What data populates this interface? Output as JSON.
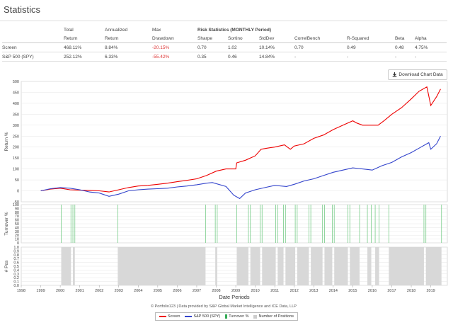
{
  "page": {
    "title": "Statistics"
  },
  "stats": {
    "headers": {
      "total": [
        "Total",
        "Return"
      ],
      "ann": [
        "Annualized",
        "Return"
      ],
      "max": [
        "Max",
        "Drawdown"
      ],
      "risk_title": "Risk Statistics (MONTHLY Period)",
      "cols": [
        "Sharpe",
        "Sortino",
        "StdDev",
        "CorrelBench",
        "R-Squared",
        "Beta",
        "Alpha"
      ]
    },
    "rows": [
      {
        "name": "Screen",
        "total": "468.11%",
        "ann": "8.84%",
        "maxdd": "-20.15%",
        "sharpe": "0.70",
        "sortino": "1.02",
        "stddev": "10.14%",
        "correl": "0.70",
        "rsq": "0.49",
        "beta": "0.48",
        "alpha": "4.75%"
      },
      {
        "name": "S&P 500 (SPY)",
        "total": "252.12%",
        "ann": "6.33%",
        "maxdd": "-55.42%",
        "sharpe": "0.35",
        "sortino": "0.46",
        "stddev": "14.84%",
        "correl": "-",
        "rsq": "-",
        "beta": "-",
        "alpha": "-"
      }
    ]
  },
  "download": {
    "label": "Download Chart Data",
    "icon": "download-icon"
  },
  "chart_data": [
    {
      "type": "line",
      "ylabel": "Return %",
      "ylim": [
        -50,
        500
      ],
      "yticks": [
        "500",
        "450",
        "400",
        "350",
        "300",
        "250",
        "200",
        "150",
        "100",
        "50",
        "0",
        "-50"
      ],
      "series": [
        {
          "name": "Screen",
          "color": "#ee0000",
          "x": [
            1999.0,
            1999.5,
            2000.0,
            2000.5,
            2001.0,
            2001.5,
            2002.0,
            2002.5,
            2003.0,
            2003.5,
            2004.0,
            2004.5,
            2005.0,
            2005.5,
            2006.0,
            2006.5,
            2007.0,
            2007.5,
            2008.0,
            2008.5,
            2009.0,
            2009.05,
            2009.5,
            2010.0,
            2010.3,
            2010.6,
            2011.0,
            2011.5,
            2011.8,
            2012.0,
            2012.5,
            2013.0,
            2013.5,
            2014.0,
            2014.5,
            2015.0,
            2015.2,
            2015.5,
            2016.0,
            2016.3,
            2016.6,
            2017.0,
            2017.5,
            2018.0,
            2018.4,
            2018.8,
            2019.0,
            2019.3,
            2019.5
          ],
          "y": [
            0,
            8,
            12,
            5,
            3,
            2,
            0,
            -5,
            5,
            15,
            22,
            25,
            30,
            35,
            42,
            48,
            55,
            70,
            90,
            100,
            100,
            128,
            140,
            160,
            190,
            195,
            200,
            210,
            190,
            205,
            215,
            240,
            255,
            280,
            300,
            320,
            310,
            300,
            300,
            300,
            320,
            350,
            380,
            420,
            455,
            475,
            390,
            430,
            465
          ]
        },
        {
          "name": "S&P 500 (SPY)",
          "color": "#3344cc",
          "x": [
            1999.0,
            1999.5,
            2000.0,
            2000.5,
            2001.0,
            2001.5,
            2002.0,
            2002.5,
            2003.0,
            2003.5,
            2004.0,
            2004.5,
            2005.0,
            2005.5,
            2006.0,
            2006.5,
            2007.0,
            2007.5,
            2007.8,
            2008.5,
            2008.9,
            2009.2,
            2009.5,
            2010.0,
            2010.5,
            2011.0,
            2011.6,
            2012.0,
            2012.5,
            2013.0,
            2013.5,
            2014.0,
            2014.5,
            2015.0,
            2015.5,
            2016.0,
            2016.5,
            2017.0,
            2017.5,
            2018.0,
            2018.5,
            2018.9,
            2019.0,
            2019.3,
            2019.5
          ],
          "y": [
            0,
            10,
            15,
            12,
            5,
            -5,
            -10,
            -25,
            -15,
            0,
            5,
            8,
            10,
            12,
            18,
            22,
            28,
            35,
            38,
            20,
            -20,
            -35,
            -10,
            5,
            15,
            25,
            20,
            30,
            45,
            55,
            70,
            85,
            95,
            105,
            100,
            95,
            115,
            130,
            155,
            175,
            200,
            220,
            190,
            215,
            250
          ]
        }
      ]
    },
    {
      "type": "bar",
      "ylabel": "Turnover %",
      "ylim": [
        0,
        100
      ],
      "yticks": [
        "100",
        "90",
        "80",
        "70",
        "60",
        "50",
        "40",
        "30",
        "20",
        "10",
        "0"
      ],
      "series": [
        {
          "name": "Turnover %",
          "color": "#77cc88"
        }
      ]
    },
    {
      "type": "area",
      "ylabel": "# Pos",
      "ylim": [
        0,
        1
      ],
      "yticks": [
        "1.0",
        "0.9",
        "0.8",
        "0.7",
        "0.6",
        "0.5",
        "0.4",
        "0.3",
        "0.2",
        "0.1",
        "0.0"
      ],
      "xlabel": "Date Periods",
      "xticks": [
        "1998",
        "1999",
        "2000",
        "2001",
        "2002",
        "2003",
        "2004",
        "2005",
        "2006",
        "2007",
        "2008",
        "2009",
        "2010",
        "2011",
        "2012",
        "2013",
        "2014",
        "2015",
        "2016",
        "2017",
        "2018",
        "2019"
      ],
      "series": [
        {
          "name": "Number of Positions",
          "color": "#d8d8d8",
          "intervals": [
            [
              2000.05,
              2000.55
            ],
            [
              2000.65,
              2000.75
            ],
            [
              2002.95,
              2007.45
            ],
            [
              2007.95,
              2008.05
            ],
            [
              2009.05,
              2009.65
            ],
            [
              2009.75,
              2010.25
            ],
            [
              2010.35,
              2011.05
            ],
            [
              2011.15,
              2011.45
            ],
            [
              2011.55,
              2012.05
            ],
            [
              2012.15,
              2012.75
            ],
            [
              2012.85,
              2013.45
            ],
            [
              2013.55,
              2013.95
            ],
            [
              2014.05,
              2014.75
            ],
            [
              2014.85,
              2015.35
            ],
            [
              2015.75,
              2015.95
            ],
            [
              2016.15,
              2016.35
            ],
            [
              2016.85,
              2018.65
            ],
            [
              2018.75,
              2019.55
            ]
          ]
        }
      ]
    }
  ],
  "footer": {
    "credit": "© Portfolio123 | Data provided by S&P Global Market Intelligence and ICE Data, LLP",
    "legend": [
      {
        "label": "Screen",
        "color": "#ee0000"
      },
      {
        "label": "S&P 500 (SPY)",
        "color": "#3344cc"
      },
      {
        "label": "Turnover %",
        "color": "#33aa55"
      },
      {
        "label": "Number of Positions",
        "color": "#cccccc"
      }
    ]
  }
}
